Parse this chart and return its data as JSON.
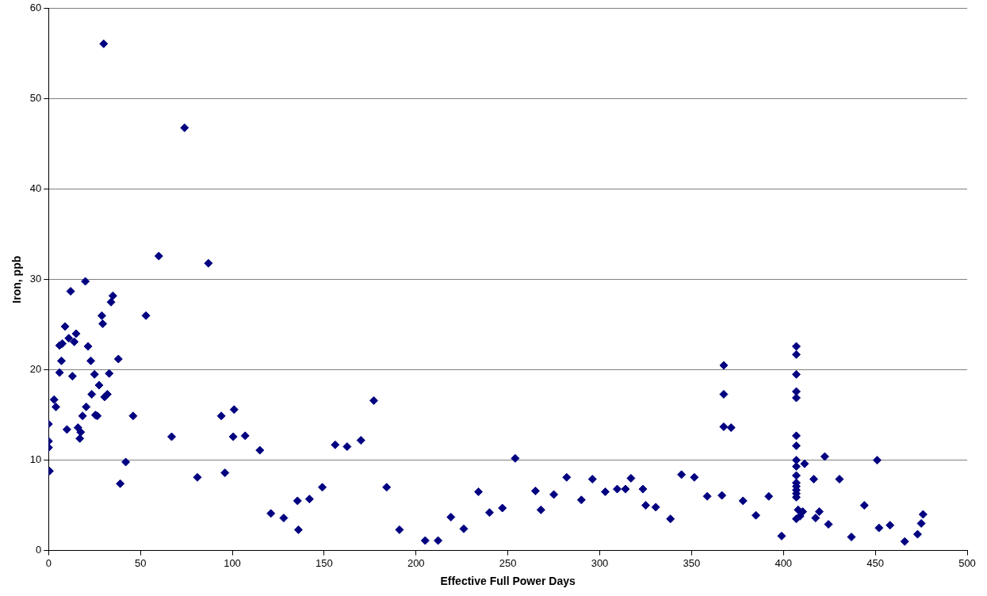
{
  "chart_data": {
    "type": "scatter",
    "xlabel": "Effective Full Power Days",
    "ylabel": "Iron, ppb",
    "xlim": [
      0,
      500
    ],
    "xticks": [
      0,
      50,
      100,
      150,
      200,
      250,
      300,
      350,
      400,
      450,
      500
    ],
    "ylim": [
      0,
      60
    ],
    "yticks": [
      0,
      10,
      20,
      30,
      40,
      50,
      60
    ],
    "grid": "y",
    "legend": false,
    "marker": "diamond",
    "series": [
      {
        "color": "#000080",
        "x": [
          0,
          0,
          0,
          0.5,
          3,
          4,
          6,
          6,
          7,
          7.5,
          9,
          10,
          11,
          12,
          13,
          14,
          15,
          16,
          17,
          17.5,
          18.5,
          20,
          20.5,
          21.5,
          23,
          23.5,
          25,
          25.5,
          26.5,
          27.5,
          29,
          29.5,
          30,
          30.5,
          32,
          33,
          34,
          35,
          38,
          39,
          42,
          46,
          53,
          60,
          67,
          74,
          81,
          87,
          94,
          96,
          100.5,
          101,
          107,
          115,
          121,
          128,
          135.5,
          136,
          142,
          149,
          156,
          162.5,
          170,
          177,
          184,
          191,
          205,
          212,
          219,
          226,
          234,
          240,
          247,
          254,
          265,
          268,
          275,
          282,
          290,
          296,
          303,
          309.5,
          314,
          317,
          323.5,
          325,
          330.5,
          338.5,
          344.5,
          351.5,
          358.5,
          366.5,
          367.5,
          367.5,
          367.5,
          371.5,
          378,
          385,
          392,
          399,
          407,
          407,
          407,
          407,
          407,
          407,
          407,
          407,
          407,
          407,
          407,
          407,
          407,
          407,
          407,
          407,
          408,
          409,
          410.5,
          411.5,
          416.5,
          417.5,
          419.5,
          422.5,
          424.5,
          430.5,
          437,
          444,
          451,
          452,
          458,
          466,
          473,
          475,
          476
        ],
        "values": [
          14.0,
          12.1,
          11.4,
          8.8,
          16.7,
          15.9,
          22.7,
          19.7,
          21.0,
          22.9,
          24.8,
          13.4,
          23.5,
          28.7,
          19.3,
          23.1,
          24.0,
          13.6,
          12.4,
          13.1,
          14.9,
          29.8,
          15.9,
          22.6,
          21.0,
          17.3,
          19.5,
          15.0,
          14.9,
          18.3,
          26.0,
          25.1,
          56.1,
          17.0,
          17.3,
          19.6,
          27.5,
          28.2,
          21.2,
          7.4,
          9.8,
          14.9,
          26.0,
          32.6,
          12.6,
          46.8,
          8.1,
          31.8,
          14.9,
          8.6,
          12.6,
          15.6,
          12.7,
          11.1,
          4.1,
          3.6,
          5.5,
          2.3,
          5.7,
          7.0,
          11.7,
          11.5,
          12.2,
          16.6,
          7.0,
          2.3,
          1.1,
          1.1,
          3.7,
          2.4,
          6.5,
          4.2,
          4.7,
          10.2,
          6.6,
          4.5,
          6.2,
          8.1,
          5.6,
          7.9,
          6.5,
          6.8,
          6.8,
          8.0,
          6.8,
          5.0,
          4.8,
          3.5,
          8.4,
          8.1,
          6.0,
          6.1,
          20.5,
          17.3,
          13.7,
          13.6,
          5.5,
          3.9,
          6.0,
          1.6,
          22.6,
          21.7,
          19.5,
          17.6,
          16.9,
          12.7,
          11.6,
          10.0,
          9.3,
          8.3,
          7.5,
          7.1,
          6.7,
          6.3,
          5.9,
          3.5,
          4.5,
          3.8,
          4.3,
          9.6,
          7.9,
          3.6,
          4.3,
          10.4,
          2.9,
          7.9,
          1.5,
          5.0,
          10.0,
          2.5,
          2.8,
          1.0,
          1.8,
          3.0,
          4.0
        ]
      }
    ]
  }
}
